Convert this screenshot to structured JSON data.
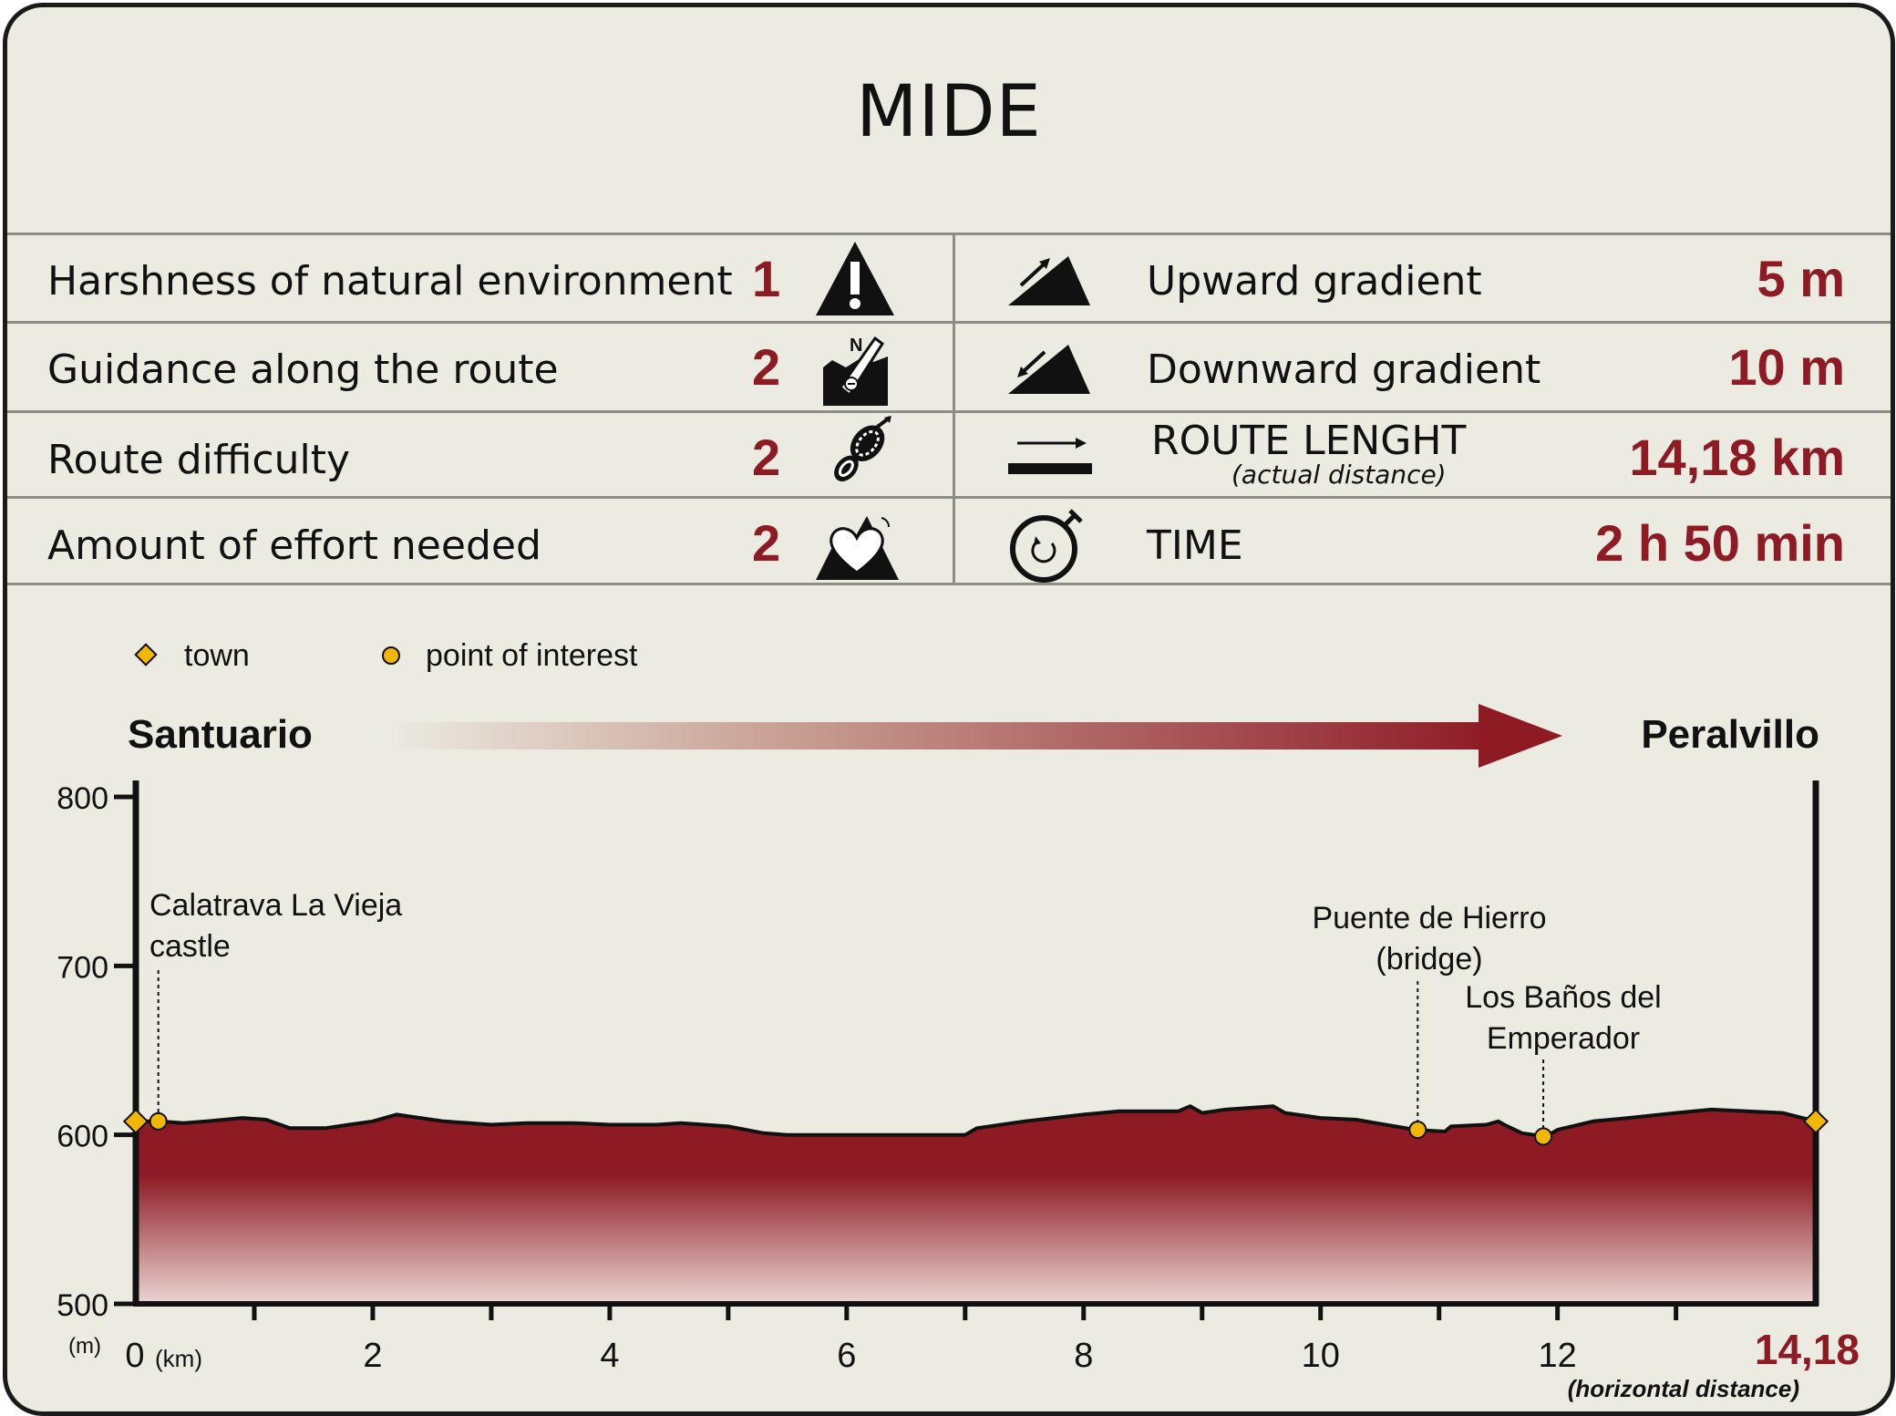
{
  "title": "MIDE",
  "mide_left": [
    {
      "label": "Harshness of natural environment",
      "value": "1",
      "icon": "warning-mountain-icon"
    },
    {
      "label": "Guidance along the route",
      "value": "2",
      "icon": "compass-sign-icon"
    },
    {
      "label": "Route difficulty",
      "value": "2",
      "icon": "footprint-icon"
    },
    {
      "label": "Amount of effort needed",
      "value": "2",
      "icon": "heart-mountain-icon"
    }
  ],
  "mide_right": [
    {
      "label": "Upward gradient",
      "sub": "",
      "value": "5 m",
      "icon": "upward-gradient-icon"
    },
    {
      "label": "Downward gradient",
      "sub": "",
      "value": "10 m",
      "icon": "downward-gradient-icon"
    },
    {
      "label": "ROUTE LENGHT",
      "sub": "(actual distance)",
      "value": "14,18 km",
      "icon": "route-length-icon"
    },
    {
      "label": "TIME",
      "sub": "",
      "value": "2 h 50 min",
      "icon": "stopwatch-icon"
    }
  ],
  "legend": {
    "town": "town",
    "poi": "point of interest"
  },
  "route": {
    "start": "Santuario",
    "end": "Peralvillo"
  },
  "colors": {
    "accent": "#8e1a24",
    "profile_top": "#8e1a24",
    "profile_bottom": "#ecd6d4",
    "town_marker": "#f2b705",
    "background": "#ecebe2"
  },
  "chart_data": {
    "type": "area",
    "title": "",
    "ylabel": "(m)",
    "xlabel": "(km)",
    "x_extra_label": "(horizontal distance)",
    "end_label": "14,18",
    "ylim": [
      500,
      800
    ],
    "xlim": [
      0,
      14.18
    ],
    "yticks": [
      500,
      600,
      700,
      800
    ],
    "xticks": [
      0,
      2,
      4,
      6,
      8,
      10,
      12
    ],
    "xtick_labels": [
      "0",
      "2",
      "4",
      "6",
      "8",
      "10",
      "12"
    ],
    "series": [
      {
        "x": [
          0,
          0.2,
          0.4,
          0.6,
          0.9,
          1.1,
          1.3,
          1.6,
          2.0,
          2.2,
          2.6,
          3.0,
          3.3,
          3.7,
          4.0,
          4.4,
          4.6,
          5.0,
          5.3,
          5.5,
          5.9,
          6.3,
          6.6,
          7.0,
          7.1,
          7.5,
          8.0,
          8.3,
          8.5,
          8.8,
          8.9,
          9.0,
          9.2,
          9.6,
          9.7,
          10.0,
          10.3,
          10.8,
          11.05,
          11.1,
          11.4,
          11.5,
          11.55,
          11.7,
          11.9,
          12.0,
          12.3,
          12.6,
          13.0,
          13.3,
          13.6,
          13.9,
          14.18
        ],
        "y": [
          608,
          608,
          607,
          608,
          610,
          609,
          604,
          604,
          608,
          612,
          608,
          606,
          607,
          607,
          606,
          606,
          607,
          605,
          601,
          600,
          600,
          600,
          600,
          600,
          604,
          608,
          612,
          614,
          614,
          614,
          617,
          613,
          615,
          617,
          613,
          610,
          609,
          603,
          602,
          605,
          606,
          608,
          606,
          601,
          599,
          603,
          608,
          610,
          613,
          615,
          614,
          613,
          608
        ]
      }
    ],
    "towns": [
      {
        "name": "Santuario",
        "x": 0,
        "y": 608
      },
      {
        "name": "Peralvillo",
        "x": 14.18,
        "y": 608
      }
    ],
    "points_of_interest": [
      {
        "label_lines": [
          "Calatrava La Vieja",
          "castle"
        ],
        "x": 0.19,
        "y": 608
      },
      {
        "label_lines": [
          "Puente de Hierro",
          "(bridge)"
        ],
        "x": 10.82,
        "y": 603
      },
      {
        "label_lines": [
          "Los Baños del",
          "Emperador"
        ],
        "x": 11.88,
        "y": 599
      }
    ]
  }
}
